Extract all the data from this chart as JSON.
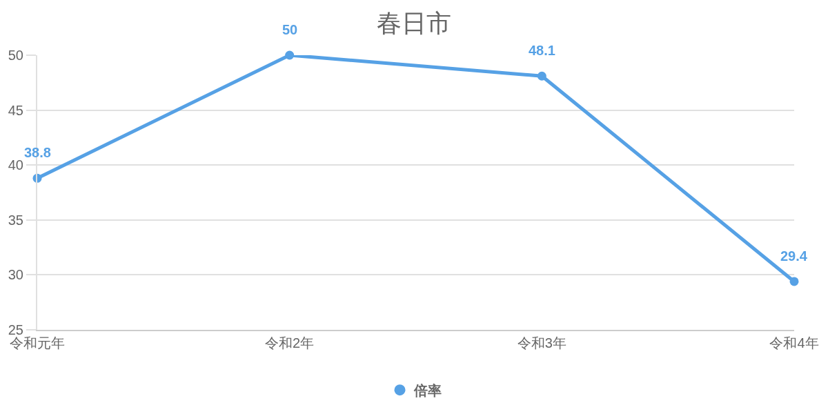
{
  "chart_data": {
    "type": "line",
    "title": "春日市",
    "categories": [
      "令和元年",
      "令和2年",
      "令和3年",
      "令和4年"
    ],
    "series": [
      {
        "name": "倍率",
        "color": "#56a1e5",
        "values": [
          38.8,
          50,
          48.1,
          29.4
        ]
      }
    ],
    "ylim": [
      25,
      50
    ],
    "yticks": [
      25,
      30,
      35,
      40,
      45,
      50
    ],
    "grid": "y",
    "legend": "bottom",
    "marker": "circle",
    "line_style": "solid",
    "data_labels": true
  }
}
